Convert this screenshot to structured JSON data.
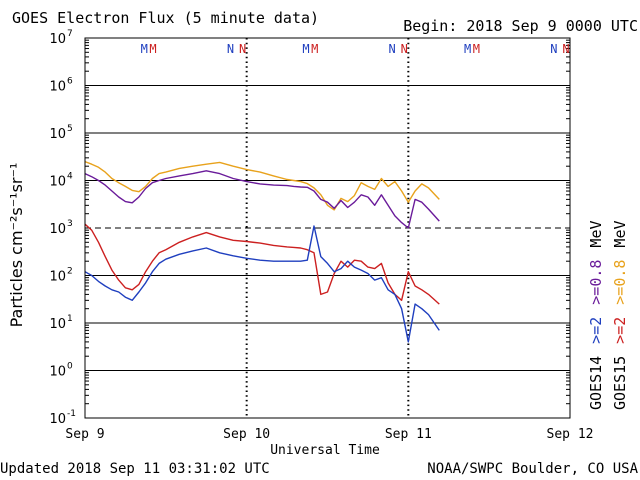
{
  "header": {
    "title": "GOES Electron Flux (5 minute data)",
    "begin": "Begin: 2018 Sep 9 0000 UTC"
  },
  "footer": {
    "updated": "Updated 2018 Sep 11 03:31:02 UTC",
    "credit": "NOAA/SWPC Boulder, CO USA"
  },
  "chart_data": {
    "type": "line",
    "title": "GOES Electron Flux (5 minute data)",
    "xlabel": "Universal Time",
    "ylabel": "Particles cm⁻²s⁻¹sr⁻¹",
    "yscale": "log",
    "ylim": [
      0.1,
      10000000
    ],
    "xlim": [
      0,
      72
    ],
    "x_unit": "hours since 2018 Sep 9 0000 UTC",
    "x_ticks": [
      {
        "label": "Sep 9",
        "hour": 0
      },
      {
        "label": "Sep 10",
        "hour": 24
      },
      {
        "label": "Sep 11",
        "hour": 48
      },
      {
        "label": "Sep 12",
        "hour": 72
      }
    ],
    "y_ticks": [
      {
        "mant": "10",
        "exp": "-1",
        "value": 0.1
      },
      {
        "mant": "10",
        "exp": "0",
        "value": 1
      },
      {
        "mant": "10",
        "exp": "1",
        "value": 10
      },
      {
        "mant": "10",
        "exp": "2",
        "value": 100
      },
      {
        "mant": "10",
        "exp": "3",
        "value": 1000
      },
      {
        "mant": "10",
        "exp": "4",
        "value": 10000
      },
      {
        "mant": "10",
        "exp": "5",
        "value": 100000
      },
      {
        "mant": "10",
        "exp": "6",
        "value": 1000000
      },
      {
        "mant": "10",
        "exp": "7",
        "value": 10000000
      }
    ],
    "grid": true,
    "threshold": {
      "value": 1000,
      "style": "dashed"
    },
    "markers": [
      {
        "label": "M",
        "hour": 8.8,
        "color": "#1f3fbf"
      },
      {
        "label": "M",
        "hour": 10.1,
        "color": "#cc2020"
      },
      {
        "label": "N",
        "hour": 21.6,
        "color": "#1f3fbf"
      },
      {
        "label": "N",
        "hour": 23.4,
        "color": "#cc2020"
      },
      {
        "label": "M",
        "hour": 32.8,
        "color": "#1f3fbf"
      },
      {
        "label": "M",
        "hour": 34.1,
        "color": "#cc2020"
      },
      {
        "label": "N",
        "hour": 45.6,
        "color": "#1f3fbf"
      },
      {
        "label": "N",
        "hour": 47.4,
        "color": "#cc2020"
      },
      {
        "label": "M",
        "hour": 56.8,
        "color": "#1f3fbf"
      },
      {
        "label": "M",
        "hour": 58.1,
        "color": "#cc2020"
      },
      {
        "label": "N",
        "hour": 69.6,
        "color": "#1f3fbf"
      },
      {
        "label": "N",
        "hour": 71.4,
        "color": "#cc2020"
      }
    ],
    "legend": {
      "placement": "right",
      "row1": [
        {
          "text": "GOES14",
          "color": "#000000"
        },
        {
          "text": ">=2",
          "color": "#1f3fbf"
        },
        {
          "text": ">=0.8",
          "color": "#6a1b9a"
        },
        {
          "text": "MeV",
          "color": "#000000"
        }
      ],
      "row2": [
        {
          "text": "GOES15",
          "color": "#000000"
        },
        {
          "text": ">=2",
          "color": "#cc2020"
        },
        {
          "text": ">=0.8",
          "color": "#e8a21c"
        },
        {
          "text": "MeV",
          "color": "#000000"
        }
      ]
    },
    "series": [
      {
        "color": "#e8a21c",
        "x": [
          0,
          1,
          2,
          3,
          4,
          5,
          6,
          7,
          8,
          9,
          10,
          11,
          12,
          14,
          16,
          18,
          20,
          22,
          24,
          26,
          28,
          30,
          31,
          32,
          33,
          34,
          35,
          36,
          37,
          38,
          39,
          40,
          41,
          42,
          43,
          44,
          45,
          46,
          47,
          48,
          49,
          50,
          51,
          52.6
        ],
        "y": [
          25000,
          22000,
          19000,
          15000,
          11000,
          9000,
          7500,
          6200,
          5800,
          7500,
          11000,
          14000,
          15000,
          18000,
          20000,
          22000,
          24000,
          20000,
          17000,
          15000,
          12500,
          10500,
          10000,
          9500,
          8600,
          7000,
          5000,
          3000,
          2400,
          4200,
          3600,
          4800,
          9000,
          7500,
          6500,
          11000,
          7500,
          9500,
          6000,
          3500,
          6000,
          8500,
          7000,
          4000
        ]
      },
      {
        "color": "#6a1b9a",
        "x": [
          0,
          1,
          2,
          3,
          4,
          5,
          6,
          7,
          8,
          9,
          10,
          11,
          12,
          14,
          16,
          18,
          20,
          22,
          24,
          26,
          28,
          30,
          31,
          32,
          33,
          34,
          35,
          36,
          37,
          38,
          39,
          40,
          41,
          42,
          43,
          44,
          45,
          46,
          47,
          48,
          49,
          50,
          51,
          52.6
        ],
        "y": [
          14000,
          12000,
          10000,
          8000,
          6000,
          4500,
          3600,
          3400,
          4500,
          6800,
          9000,
          10000,
          11000,
          12500,
          14000,
          16000,
          14000,
          11000,
          9500,
          8500,
          8000,
          7800,
          7500,
          7300,
          7200,
          6000,
          4000,
          3500,
          2600,
          3800,
          2700,
          3500,
          5000,
          4500,
          3000,
          5000,
          3000,
          1800,
          1300,
          1000,
          4000,
          3500,
          2500,
          1400
        ]
      },
      {
        "color": "#cc2020",
        "x": [
          0,
          1,
          2,
          3,
          4,
          5,
          6,
          7,
          8,
          9,
          10,
          11,
          12,
          14,
          16,
          18,
          20,
          22,
          24,
          26,
          28,
          30,
          31,
          32,
          33,
          34,
          35,
          36,
          37,
          38,
          39,
          40,
          41,
          42,
          43,
          44,
          45,
          46,
          47,
          48,
          49,
          50,
          51,
          52.6
        ],
        "y": [
          1200,
          900,
          500,
          250,
          130,
          80,
          55,
          50,
          65,
          120,
          200,
          300,
          350,
          500,
          650,
          800,
          650,
          550,
          520,
          480,
          430,
          400,
          390,
          380,
          350,
          300,
          40,
          45,
          110,
          200,
          150,
          210,
          200,
          150,
          140,
          180,
          70,
          40,
          30,
          120,
          60,
          50,
          40,
          25
        ]
      },
      {
        "color": "#1f3fbf",
        "x": [
          0,
          1,
          2,
          3,
          4,
          5,
          6,
          7,
          8,
          9,
          10,
          11,
          12,
          14,
          16,
          18,
          20,
          22,
          24,
          26,
          28,
          30,
          31,
          32,
          33,
          34,
          35,
          36,
          37,
          38,
          39,
          40,
          41,
          42,
          43,
          44,
          45,
          46,
          47,
          48,
          49,
          50,
          51,
          52.6
        ],
        "y": [
          120,
          100,
          75,
          60,
          50,
          45,
          35,
          30,
          45,
          70,
          120,
          180,
          220,
          280,
          330,
          380,
          300,
          260,
          230,
          210,
          200,
          200,
          200,
          200,
          210,
          1100,
          250,
          180,
          120,
          140,
          200,
          150,
          130,
          110,
          80,
          90,
          50,
          40,
          20,
          4,
          25,
          20,
          15,
          7
        ]
      }
    ]
  }
}
